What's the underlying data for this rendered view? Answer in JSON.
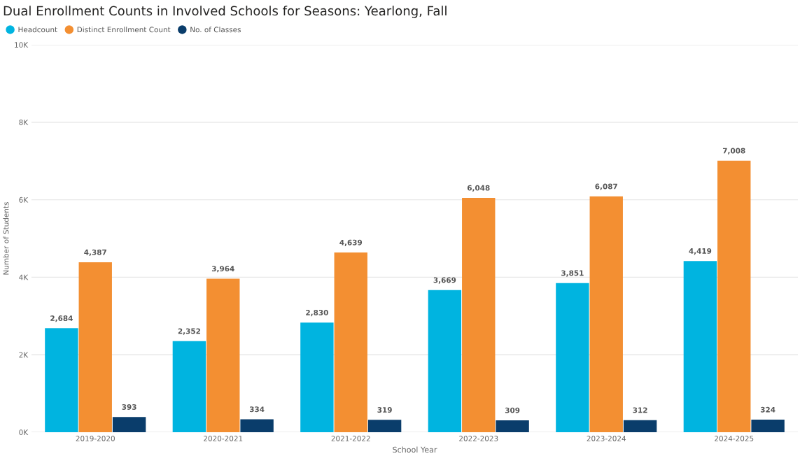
{
  "chart_data": {
    "type": "bar",
    "title": "Dual Enrollment Counts in Involved Schools for Seasons: Yearlong, Fall",
    "xlabel": "School Year",
    "ylabel": "Number of Students",
    "categories": [
      "2019-2020",
      "2020-2021",
      "2021-2022",
      "2022-2023",
      "2023-2024",
      "2024-2025"
    ],
    "series": [
      {
        "name": "Headcount",
        "color": "#00b4e0",
        "values": [
          2684,
          2352,
          2830,
          3669,
          3851,
          4419
        ],
        "value_labels": [
          "2,684",
          "2,352",
          "2,830",
          "3,669",
          "3,851",
          "4,419"
        ]
      },
      {
        "name": "Distinct Enrollment Count",
        "color": "#f38f32",
        "values": [
          4387,
          3964,
          4639,
          6048,
          6087,
          7008
        ],
        "value_labels": [
          "4,387",
          "3,964",
          "4,639",
          "6,048",
          "6,087",
          "7,008"
        ]
      },
      {
        "name": "No. of Classes",
        "color": "#0a3d6b",
        "values": [
          393,
          334,
          319,
          309,
          312,
          324
        ],
        "value_labels": [
          "393",
          "334",
          "319",
          "309",
          "312",
          "324"
        ]
      }
    ],
    "ylim": [
      0,
      10000
    ],
    "yticks": [
      {
        "value": 0,
        "label": "0K"
      },
      {
        "value": 2000,
        "label": "2K"
      },
      {
        "value": 4000,
        "label": "4K"
      },
      {
        "value": 6000,
        "label": "6K"
      },
      {
        "value": 8000,
        "label": "8K"
      },
      {
        "value": 10000,
        "label": "10K"
      }
    ],
    "grid": "y",
    "legend": "top left"
  }
}
